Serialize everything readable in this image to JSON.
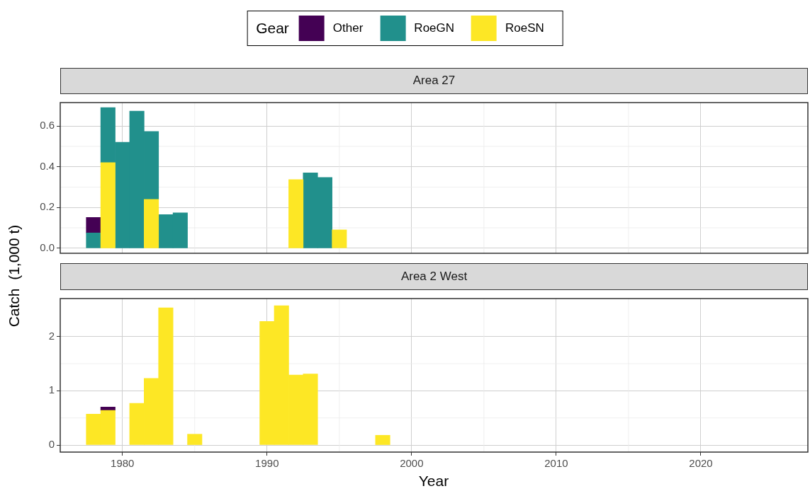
{
  "chart_data": [
    {
      "type": "bar",
      "title": "Area 27",
      "ylabel": "Catch  (1,000 t)",
      "legend_title": "Gear",
      "legend": "top",
      "stacked": true,
      "grid": true,
      "tick_labels": "y",
      "x": [
        1978,
        1979,
        1980,
        1981,
        1982,
        1983,
        1984,
        1992,
        1993,
        1994,
        1995
      ],
      "xlim": [
        1975.7,
        2027.4
      ],
      "xticks": [
        1980,
        1990,
        2000,
        2010,
        2020
      ],
      "ylim": [
        -0.025,
        0.715
      ],
      "yticks": [
        {
          "value": 0,
          "label": "0.0"
        },
        {
          "value": 0.2,
          "label": "0.2"
        },
        {
          "value": 0.4,
          "label": "0.4"
        },
        {
          "value": 0.6,
          "label": "0.6"
        }
      ],
      "series": [
        {
          "name": "RoeSN",
          "color": "#fde725",
          "values": [
            null,
            0.42,
            null,
            null,
            0.24,
            null,
            null,
            0.337,
            null,
            null,
            0.09
          ]
        },
        {
          "name": "RoeGN",
          "color": "#21908c",
          "values": [
            0.075,
            0.27,
            0.52,
            0.673,
            0.333,
            0.165,
            0.174,
            null,
            0.37,
            0.347,
            null
          ]
        },
        {
          "name": "Other",
          "color": "#440154",
          "values": [
            0.076,
            null,
            null,
            null,
            null,
            null,
            null,
            null,
            null,
            null,
            null
          ]
        }
      ]
    },
    {
      "type": "bar",
      "title": "Area 2 West",
      "xlabel": "Year",
      "stacked": true,
      "grid": true,
      "x": [
        1978,
        1979,
        1981,
        1982,
        1983,
        1985,
        1990,
        1991,
        1992,
        1993,
        1998
      ],
      "xlim": [
        1975.7,
        2027.4
      ],
      "xticks": [
        1980,
        1990,
        2000,
        2010,
        2020
      ],
      "ylim": [
        -0.13,
        2.7
      ],
      "yticks": [
        0,
        1,
        2
      ],
      "series": [
        {
          "name": "RoeSN",
          "color": "#fde725",
          "values": [
            0.57,
            0.64,
            0.77,
            1.23,
            2.53,
            0.2,
            2.28,
            2.57,
            1.29,
            1.31,
            0.18
          ]
        },
        {
          "name": "Other",
          "color": "#440154",
          "values": [
            null,
            0.06,
            null,
            null,
            null,
            null,
            null,
            null,
            null,
            null,
            null
          ]
        }
      ]
    }
  ]
}
